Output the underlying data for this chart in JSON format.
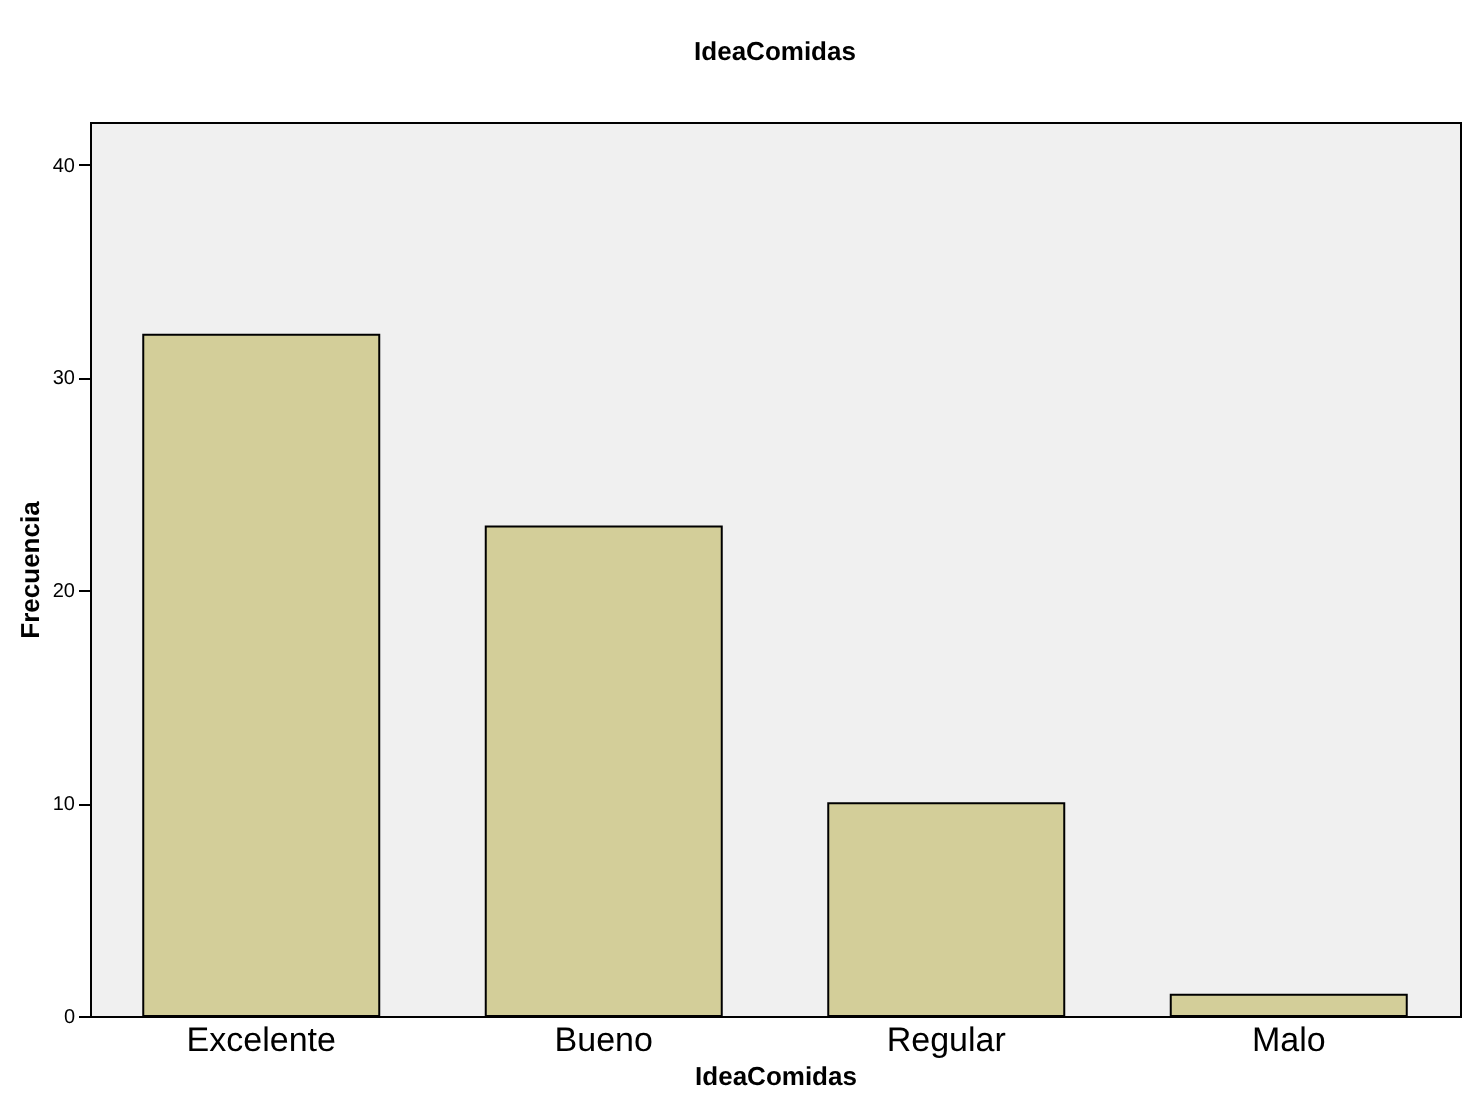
{
  "chart_data": {
    "type": "bar",
    "title": "IdeaComidas",
    "xlabel": "IdeaComidas",
    "ylabel": "Frecuencia",
    "categories": [
      "Excelente",
      "Bueno",
      "Regular",
      "Malo"
    ],
    "values": [
      32,
      23,
      10,
      1
    ],
    "color": "#d3ce99",
    "ylim": [
      0,
      42
    ],
    "yticks": [
      0,
      10,
      20,
      30,
      40
    ],
    "grid": false
  }
}
